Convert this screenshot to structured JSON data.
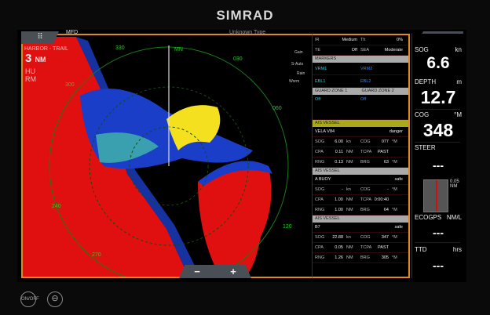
{
  "brand": "SIMRAD",
  "radar": {
    "menu_icon": "grid-menu-icon",
    "mode_label": "HARBOR - TRAIL",
    "range_value": "3",
    "range_unit": "NM",
    "orientation": "HU",
    "motion": "RM",
    "top_label": "MFD",
    "top_right_label": "Unknown Type",
    "bearing_labels": [
      "330",
      "MN",
      "030",
      "060",
      "120",
      "240",
      "300",
      "270"
    ],
    "indicators": [
      "Gain",
      "S-Auto",
      "Rain",
      "Worm"
    ],
    "zoom_out": "−",
    "zoom_in": "+"
  },
  "table": {
    "r1": [
      "IR",
      "Medium",
      "Th",
      "0%"
    ],
    "r2": [
      "TE",
      "Off",
      "SEA",
      "Moderate"
    ],
    "markers_header": "MARKERS",
    "vrm1": "VRM1",
    "vrm2": "VRM2",
    "ebl1": "EBL1",
    "ebl2": "EBL2",
    "guard1": "GUARD ZONE 1",
    "guard2": "GUARD ZONE 2",
    "guard1_val": "Off",
    "guard2_val": "Off",
    "vessels": [
      {
        "header": "AIS VESSEL",
        "name": "VELA V84",
        "status": "danger",
        "sog": "6.00",
        "cog": "077",
        "cpa": "0.11",
        "tcpa": "PAST",
        "brg_range": "0.13",
        "brg": "63"
      },
      {
        "header": "AIS VESSEL",
        "name": "A BUOY",
        "status": "safe",
        "sog": "-",
        "cog": "-",
        "cpa": "1.00",
        "tcpa": "0:00:40",
        "brg_range": "1.00",
        "brg": "64"
      },
      {
        "header": "AIS VESSEL",
        "name": "B7",
        "status": "safe",
        "sog": "22.88",
        "cog": "347",
        "cpa": "0.05",
        "tcpa": "PAST",
        "brg_range": "1.26",
        "brg": "305"
      }
    ],
    "labels": {
      "sog": "SOG",
      "cog": "COG",
      "cpa": "CPA",
      "tcpa": "TCPA",
      "rng": "RNG",
      "brg": "BRG",
      "kn": "kn",
      "nm": "NM",
      "deg": "°M"
    }
  },
  "panel": {
    "menu_icon": "hamburger-menu-icon",
    "sog_label": "SOG",
    "sog_unit": "kn",
    "sog": "6.6",
    "depth_label": "DEPTH",
    "depth_unit": "m",
    "depth": "12.7",
    "cog_label": "COG",
    "cog_unit": "°M",
    "cog": "348",
    "steer_label": "STEER",
    "steer": "---",
    "xte": "0.05",
    "xte_unit": "NM",
    "eco_label": "ECOGPS",
    "eco_unit": "NM/L",
    "eco": "---",
    "ttd_label": "TTD",
    "ttd_unit": "hrs",
    "ttd": "---"
  },
  "bottom": {
    "power_label": "ON/OFF",
    "steer_icon": "steering-wheel-icon"
  },
  "colors": {
    "accent": "#e08a1e",
    "rings": "#1a7a1a",
    "ais_header": "#a9a91a"
  }
}
